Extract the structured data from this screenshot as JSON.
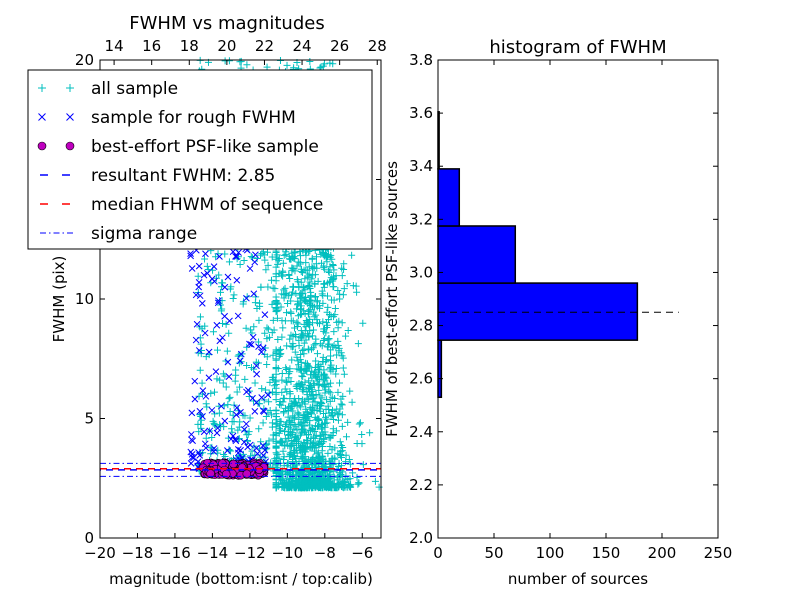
{
  "chart_data": [
    {
      "type": "scatter",
      "title": "FWHM vs magnitudes",
      "xlabel": "magnitude (bottom:isnt / top:calib)",
      "ylabel": "FWHM (pix)",
      "xlim": [
        -20,
        -5
      ],
      "ylim": [
        0,
        20
      ],
      "xticks": [
        -20,
        -18,
        -16,
        -14,
        -12,
        -10,
        -8,
        -6
      ],
      "xtick_labels": [
        "−20",
        "−18",
        "−16",
        "−14",
        "−12",
        "−10",
        "−8",
        "−6"
      ],
      "yticks": [
        0,
        5,
        10,
        15,
        20
      ],
      "ytick_labels": [
        "0",
        "5",
        "10",
        "15",
        "20"
      ],
      "top_xlim": [
        13.25,
        28.2
      ],
      "top_xticks": [
        14,
        16,
        18,
        20,
        22,
        24,
        26,
        28
      ],
      "top_xtick_labels": [
        "14",
        "16",
        "18",
        "20",
        "22",
        "24",
        "26",
        "28"
      ],
      "legend_position": "upper-left",
      "legend": [
        {
          "label": "all sample",
          "marker": "+",
          "color": "#00BFBF"
        },
        {
          "label": "sample for rough FWHM",
          "marker": "x",
          "color": "#0000FF"
        },
        {
          "label": "best-effort PSF-like sample",
          "marker": "o",
          "color": "#BF00BF"
        },
        {
          "label": "resultant FWHM: 2.85",
          "marker": "dashed",
          "color": "#0000FF"
        },
        {
          "label": "median FHWM of sequence",
          "marker": "dashed",
          "color": "#FF0000"
        },
        {
          "label": "sigma range",
          "marker": "dashdot",
          "color": "#0000FF"
        }
      ],
      "hlines": {
        "resultant": 2.85,
        "median": 2.9,
        "sigma_low": 2.58,
        "sigma_high": 3.12
      },
      "series": [
        {
          "name": "all sample",
          "color": "#00BFBF",
          "count": 2200,
          "clusters": [
            {
              "n": 1500,
              "x_mean": -8.9,
              "x_sd": 1.1,
              "x_min": -10.6,
              "x_max": -5.1,
              "y_min": 2.1,
              "y_max": 14,
              "y_skew": 2.2
            },
            {
              "n": 450,
              "x_min": -14.8,
              "x_max": -10.5,
              "y_min": 2.8,
              "y_max": 20,
              "y_skew": 1.6
            },
            {
              "n": 250,
              "x_min": -10.5,
              "x_max": -7.5,
              "y_min": 10,
              "y_max": 20,
              "y_skew": 1.0
            }
          ]
        },
        {
          "name": "sample for rough FWHM",
          "color": "#0000FF",
          "count": 160,
          "clusters": [
            {
              "n": 160,
              "x_min": -15.2,
              "x_max": -11.0,
              "y_min": 2.9,
              "y_max": 13,
              "y_skew": 1.8
            }
          ]
        },
        {
          "name": "best-effort PSF-like sample",
          "color": "#BF00BF",
          "count": 180,
          "clusters": [
            {
              "n": 180,
              "x_min": -14.5,
              "x_max": -11.2,
              "y_min": 2.62,
              "y_max": 3.15,
              "y_skew": 1.0
            }
          ]
        }
      ]
    },
    {
      "type": "bar",
      "orientation": "horizontal",
      "title": "histogram of FWHM",
      "xlabel": "number of sources",
      "ylabel": "FWHM of best-effort PSF-like sources",
      "xlim": [
        0,
        250
      ],
      "ylim": [
        2.0,
        3.8
      ],
      "xticks": [
        0,
        50,
        100,
        150,
        200,
        250
      ],
      "xtick_labels": [
        "0",
        "50",
        "100",
        "150",
        "200",
        "250"
      ],
      "yticks": [
        2.0,
        2.2,
        2.4,
        2.6,
        2.8,
        3.0,
        3.2,
        3.4,
        3.6,
        3.8
      ],
      "ytick_labels": [
        "2.0",
        "2.2",
        "2.4",
        "2.6",
        "2.8",
        "3.0",
        "3.2",
        "3.4",
        "3.6",
        "3.8"
      ],
      "bin_edges": [
        2.53,
        2.745,
        2.96,
        3.175,
        3.39,
        3.605
      ],
      "values": [
        3,
        178,
        69,
        19,
        1
      ],
      "bar_color": "#0000FF",
      "reference_line": {
        "value": 2.85,
        "extent": 215,
        "style": "dashed",
        "color": "#000000"
      }
    }
  ]
}
